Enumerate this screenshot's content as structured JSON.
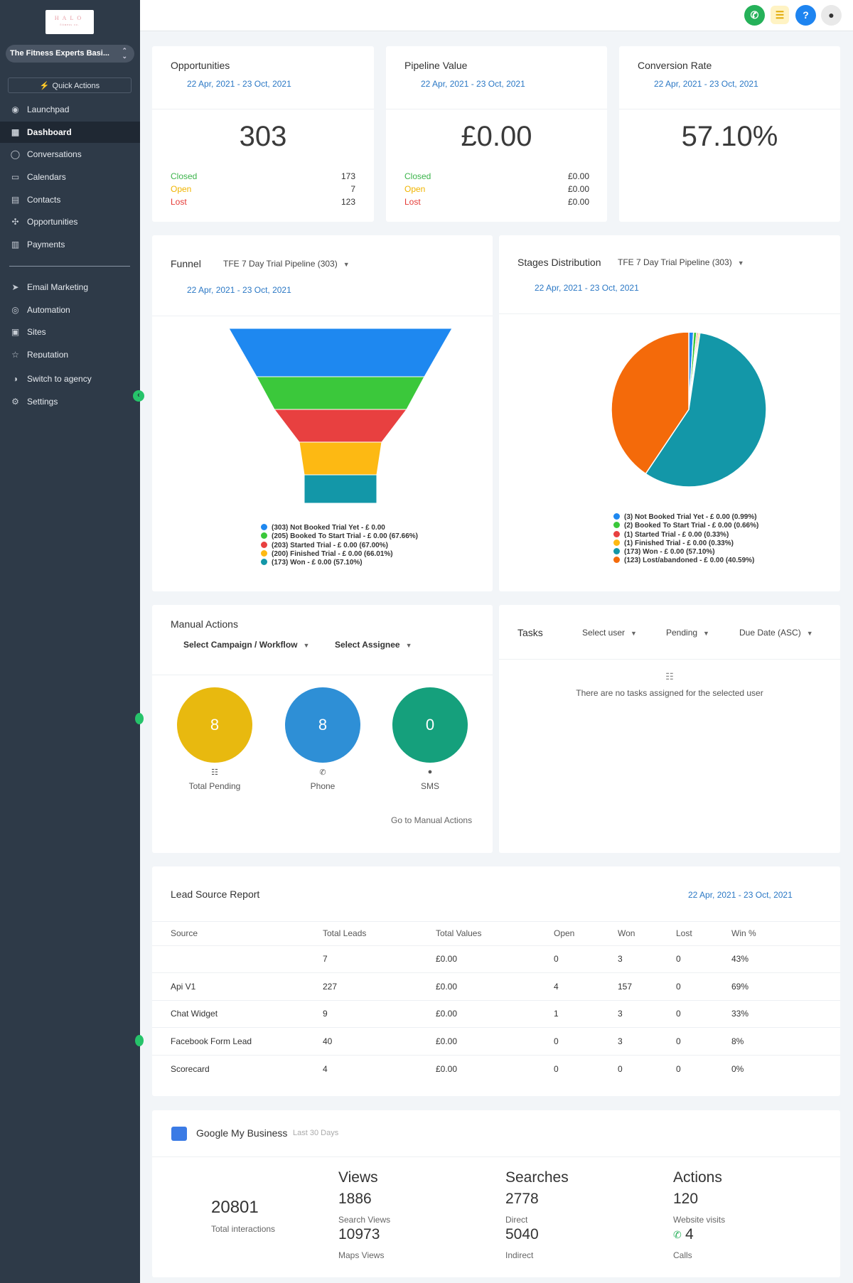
{
  "sidebar": {
    "logo": "HALO",
    "logo_sub": "fitness co.",
    "account": "The Fitness Experts Basi...",
    "quick_actions": "Quick Actions",
    "items": [
      {
        "label": "Launchpad",
        "icon": "rocket-icon"
      },
      {
        "label": "Dashboard",
        "icon": "dashboard-icon"
      },
      {
        "label": "Conversations",
        "icon": "chat-icon"
      },
      {
        "label": "Calendars",
        "icon": "calendar-icon"
      },
      {
        "label": "Contacts",
        "icon": "contacts-icon"
      },
      {
        "label": "Opportunities",
        "icon": "opportunities-icon"
      },
      {
        "label": "Payments",
        "icon": "payments-icon"
      },
      {
        "label": "Email Marketing",
        "icon": "send-icon"
      },
      {
        "label": "Automation",
        "icon": "automation-icon"
      },
      {
        "label": "Sites",
        "icon": "sites-icon"
      },
      {
        "label": "Reputation",
        "icon": "star-icon"
      },
      {
        "label": "Switch to agency",
        "icon": "switch-icon"
      },
      {
        "label": "Settings",
        "icon": "gear-icon"
      }
    ]
  },
  "topbar": {
    "icons": [
      "phone-icon",
      "notifications-icon",
      "help-icon",
      "avatar"
    ]
  },
  "kpis": [
    {
      "title": "Opportunities",
      "date": "22 Apr, 2021 - 23 Oct, 2021",
      "value": "303",
      "rows": [
        {
          "label": "Closed",
          "value": "173",
          "color": "#3cb44b"
        },
        {
          "label": "Open",
          "value": "7",
          "color": "#f0b400"
        },
        {
          "label": "Lost",
          "value": "123",
          "color": "#e53935"
        }
      ]
    },
    {
      "title": "Pipeline Value",
      "date": "22 Apr, 2021 - 23 Oct, 2021",
      "value": "£0.00",
      "rows": [
        {
          "label": "Closed",
          "value": "£0.00",
          "color": "#3cb44b"
        },
        {
          "label": "Open",
          "value": "£0.00",
          "color": "#f0b400"
        },
        {
          "label": "Lost",
          "value": "£0.00",
          "color": "#e53935"
        }
      ]
    },
    {
      "title": "Conversion Rate",
      "date": "22 Apr, 2021 - 23 Oct, 2021",
      "value": "57.10%",
      "rows": []
    }
  ],
  "funnel": {
    "title": "Funnel",
    "pipeline": "TFE 7 Day Trial Pipeline (303)",
    "date": "22 Apr, 2021 - 23 Oct, 2021"
  },
  "stages": {
    "title": "Stages Distribution",
    "pipeline": "TFE 7 Day Trial Pipeline (303)",
    "date": "22 Apr, 2021 - 23 Oct, 2021"
  },
  "chart_data": [
    {
      "type": "funnel",
      "categories": [
        "Not Booked Trial Yet",
        "Booked To Start Trial",
        "Started Trial",
        "Finished Trial",
        "Won"
      ],
      "values": [
        303,
        205,
        203,
        200,
        173
      ],
      "colors": [
        "#1e88f0",
        "#3bc83b",
        "#e84040",
        "#fdb913",
        "#1397a8"
      ],
      "legend": [
        "(303) Not Booked Trial Yet - £ 0.00",
        "(205) Booked To Start Trial - £ 0.00 (67.66%)",
        "(203) Started Trial - £ 0.00 (67.00%)",
        "(200) Finished Trial - £ 0.00 (66.01%)",
        "(173) Won - £ 0.00 (57.10%)"
      ]
    },
    {
      "type": "pie",
      "categories": [
        "Not Booked Trial Yet",
        "Booked To Start Trial",
        "Started Trial",
        "Finished Trial",
        "Won",
        "Lost/abandoned"
      ],
      "values": [
        3,
        2,
        1,
        1,
        173,
        123
      ],
      "colors": [
        "#1e88f0",
        "#3bc83b",
        "#e84040",
        "#fdb913",
        "#1397a8",
        "#f46a0a"
      ],
      "legend": [
        "(3) Not Booked Trial Yet - £ 0.00 (0.99%)",
        "(2) Booked To Start Trial - £ 0.00 (0.66%)",
        "(1) Started Trial - £ 0.00 (0.33%)",
        "(1) Finished Trial - £ 0.00 (0.33%)",
        "(173) Won - £ 0.00 (57.10%)",
        "(123) Lost/abandoned - £ 0.00 (40.59%)"
      ]
    }
  ],
  "manual": {
    "title": "Manual Actions",
    "campaign": "Select Campaign / Workflow",
    "assignee": "Select Assignee",
    "circles": [
      {
        "value": "8",
        "label": "Total Pending",
        "color": "#e8b90f",
        "icon": "☷"
      },
      {
        "value": "8",
        "label": "Phone",
        "color": "#2e8fd6",
        "icon": "✆"
      },
      {
        "value": "0",
        "label": "SMS",
        "color": "#15a07c",
        "icon": "💬"
      }
    ],
    "link": "Go to Manual Actions"
  },
  "tasks": {
    "title": "Tasks",
    "user": "Select user",
    "status": "Pending",
    "sort": "Due Date (ASC)",
    "empty": "There are no tasks assigned for the selected user"
  },
  "lead": {
    "title": "Lead Source Report",
    "date": "22 Apr, 2021 - 23 Oct, 2021",
    "headers": [
      "Source",
      "Total Leads",
      "Total Values",
      "Open",
      "Won",
      "Lost",
      "Win %"
    ],
    "rows": [
      [
        "",
        "7",
        "£0.00",
        "0",
        "3",
        "0",
        "43%"
      ],
      [
        "Api V1",
        "227",
        "£0.00",
        "4",
        "157",
        "0",
        "69%"
      ],
      [
        "Chat Widget",
        "9",
        "£0.00",
        "1",
        "3",
        "0",
        "33%"
      ],
      [
        "Facebook Form Lead",
        "40",
        "£0.00",
        "0",
        "3",
        "0",
        "8%"
      ],
      [
        "Scorecard",
        "4",
        "£0.00",
        "0",
        "0",
        "0",
        "0%"
      ]
    ]
  },
  "gmb": {
    "title": "Google My Business",
    "period": "Last 30 Days",
    "total": "20801",
    "total_label": "Total interactions",
    "views": {
      "title": "Views",
      "a": "1886",
      "a_label": "Search Views",
      "b": "10973",
      "b_label": "Maps Views"
    },
    "searches": {
      "title": "Searches",
      "a": "2778",
      "a_label": "Direct",
      "b": "5040",
      "b_label": "Indirect"
    },
    "actions": {
      "title": "Actions",
      "a": "120",
      "a_label": "Website visits",
      "b": "4",
      "b_label": "Calls"
    }
  }
}
